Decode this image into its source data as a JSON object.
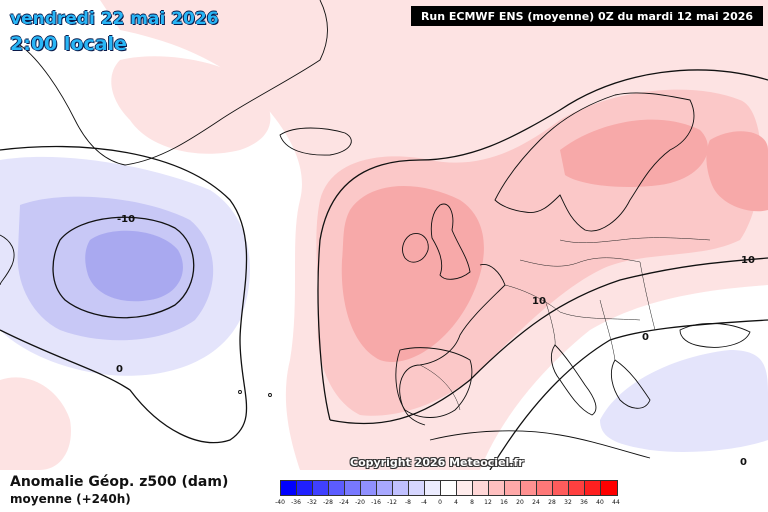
{
  "title": {
    "date": "vendredi 22 mai 2026",
    "time": "2:00 locale"
  },
  "run_info": "Run ECMWF ENS (moyenne) 0Z du mardi 12 mai 2026",
  "copyright": "Copyright 2026 Meteociel.fr",
  "field": {
    "name": "Anomalie Géop. z500 (dam)",
    "subtitle": "moyenne   (+240h)"
  },
  "contour_labels": [
    {
      "id": "neg10",
      "text": "-10"
    },
    {
      "id": "zero-atlantic",
      "text": "0"
    },
    {
      "id": "ten-east",
      "text": "10"
    },
    {
      "id": "ten-central",
      "text": "10"
    },
    {
      "id": "zero-balkans",
      "text": "0"
    },
    {
      "id": "zero-se",
      "text": "0"
    }
  ],
  "legend": {
    "labels": [
      "-40",
      "-36",
      "-32",
      "-28",
      "-24",
      "-20",
      "-16",
      "-12",
      "-8",
      "-4",
      "0",
      "4",
      "8",
      "12",
      "16",
      "20",
      "24",
      "28",
      "32",
      "36",
      "40",
      "44"
    ],
    "colors": [
      "#0000ff",
      "#2020ff",
      "#4040ff",
      "#5c5cff",
      "#7878ff",
      "#9090ff",
      "#a8a8ff",
      "#c0c0ff",
      "#d6d6ff",
      "#ececff",
      "#ffffff",
      "#ffecec",
      "#ffd6d6",
      "#ffc0c0",
      "#ffa8a8",
      "#ff9090",
      "#ff7878",
      "#ff5c5c",
      "#ff4040",
      "#ff2020",
      "#ff0000"
    ]
  },
  "colors": {
    "title_cyan": "#29b6f6",
    "positive_light": "#fde3e3",
    "positive_mid": "#fbc8c8",
    "positive_strong": "#f7a9a9",
    "negative_light": "#e4e4fb",
    "negative_mid": "#c8c8f6",
    "negative_strong": "#a9a9f0"
  }
}
